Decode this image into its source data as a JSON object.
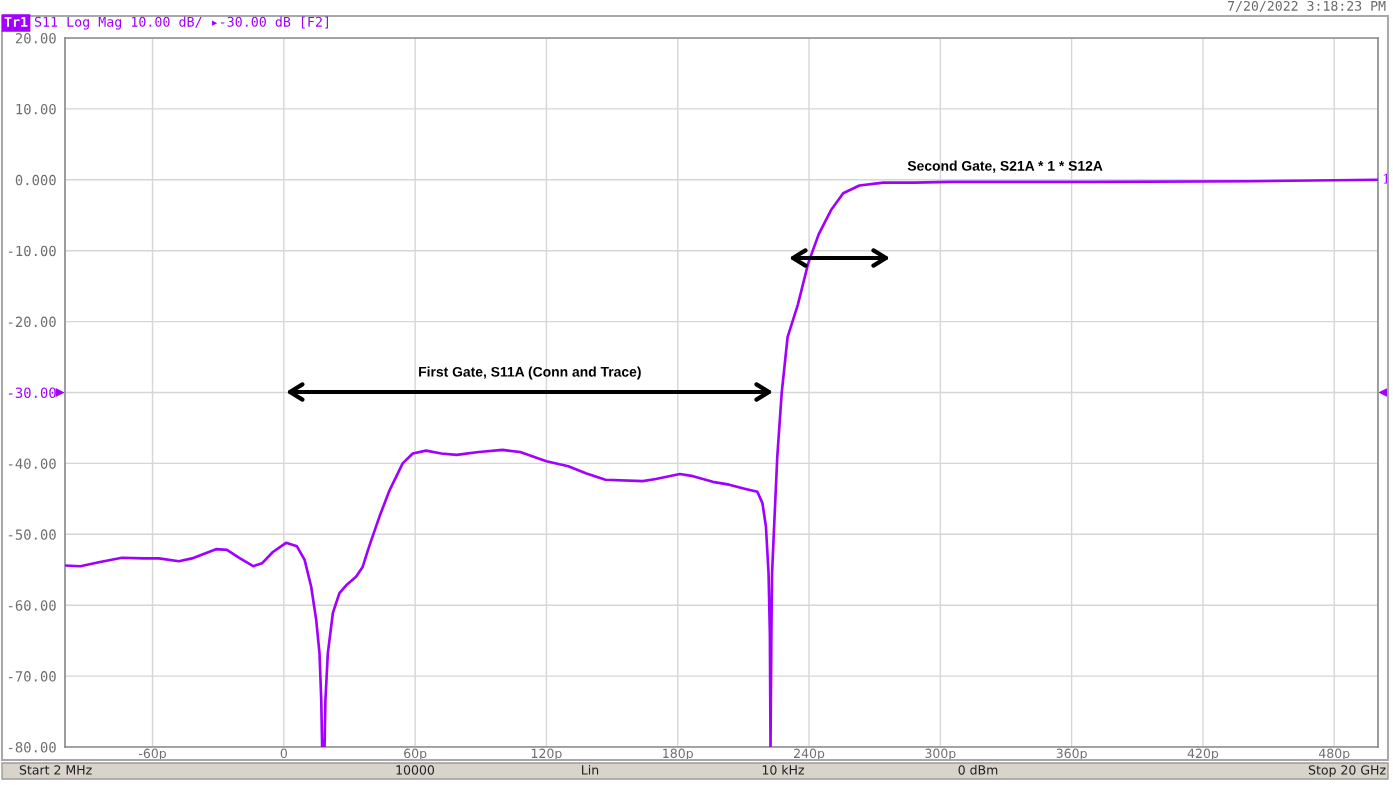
{
  "chart_data": {
    "type": "line",
    "title": "S11 Log Mag 10.00 dB/ ▸-30.00 dB [F2]",
    "x": [
      -100,
      -93,
      -84,
      -74,
      -64,
      -57,
      -48,
      -42,
      -31,
      -26,
      -20,
      -14,
      -10,
      -5,
      1,
      6,
      9.5,
      12.5,
      14.8,
      16.3,
      17.1,
      17.5,
      18.6,
      19,
      20.1,
      22.4,
      25.4,
      28.5,
      33,
      36,
      39,
      43.7,
      48.3,
      54.3,
      58.9,
      65,
      72,
      79,
      89,
      100,
      108,
      120,
      130,
      138,
      147,
      164,
      170,
      181,
      187,
      196,
      203.5,
      211,
      216.4,
      218.7,
      220.3,
      221.5,
      222.1,
      222.4,
      222.8,
      223.1,
      223.9,
      225.5,
      227.5,
      230.2,
      234.9,
      239.6,
      244.4,
      250,
      255.6,
      263,
      274,
      288,
      304,
      336,
      370,
      442,
      470,
      500
    ],
    "series": [
      {
        "name": "Tr1",
        "color": "#a100ff",
        "values": [
          -54.4,
          -54.5,
          -53.9,
          -53.3,
          -53.4,
          -53.4,
          -53.8,
          -53.4,
          -52.1,
          -52.2,
          -53.4,
          -54.5,
          -54.1,
          -52.5,
          -51.2,
          -51.7,
          -53.6,
          -57.4,
          -62.1,
          -66.8,
          -73.4,
          -80,
          -80,
          -73.4,
          -66.8,
          -61.1,
          -58.3,
          -57.2,
          -56.0,
          -54.6,
          -51.7,
          -47.5,
          -43.8,
          -40.0,
          -38.6,
          -38.2,
          -38.6,
          -38.8,
          -38.4,
          -38.1,
          -38.4,
          -39.7,
          -40.4,
          -41.4,
          -42.3,
          -42.5,
          -42.2,
          -41.5,
          -41.8,
          -42.6,
          -43.0,
          -43.6,
          -44.0,
          -45.6,
          -48.9,
          -55.5,
          -64.0,
          -80,
          -64.0,
          -55.5,
          -49.9,
          -39.0,
          -30.1,
          -22.2,
          -17.6,
          -11.8,
          -7.7,
          -4.3,
          -1.9,
          -0.8,
          -0.4,
          -0.4,
          -0.3,
          -0.3,
          -0.3,
          -0.2,
          -0.1,
          0.0
        ]
      }
    ],
    "xlim": [
      -100,
      500
    ],
    "xticks": [
      {
        "value": -60,
        "label": "-60p"
      },
      0,
      {
        "value": 60,
        "label": "60p"
      },
      {
        "value": 120,
        "label": "120p"
      },
      {
        "value": 180,
        "label": "180p"
      },
      {
        "value": 240,
        "label": "240p"
      },
      {
        "value": 300,
        "label": "300p"
      },
      {
        "value": 360,
        "label": "360p"
      },
      {
        "value": 420,
        "label": "420p"
      },
      {
        "value": 480,
        "label": "480p"
      }
    ],
    "ylim": [
      -80,
      20
    ],
    "yticks": [
      {
        "value": 20,
        "label": "20.00"
      },
      {
        "value": 10,
        "label": "10.00"
      },
      {
        "value": 0,
        "label": "0.000"
      },
      {
        "value": -10,
        "label": "-10.00"
      },
      {
        "value": -20,
        "label": "-20.00"
      },
      {
        "value": -30,
        "label": "-30.00"
      },
      {
        "value": -40,
        "label": "-40.00"
      },
      {
        "value": -50,
        "label": "-50.00"
      },
      {
        "value": -60,
        "label": "-60.00"
      },
      {
        "value": -70,
        "label": "-70.00"
      },
      {
        "value": -80,
        "label": "-80.00"
      }
    ],
    "annotations": [
      "First Gate, S11A (Conn and Trace)",
      "Second Gate, S21A * 1 * S12A",
      {
        "text": "1",
        "x": 500,
        "y": 0
      },
      "7/20/2022 3:18:23 PM",
      "Start 2 MHz",
      "10000",
      "Lin",
      "10 kHz",
      "0 dBm",
      "Stop 20 GHz"
    ],
    "grid": true,
    "legend": "top left",
    "marker": "none",
    "line_style": "solid"
  }
}
